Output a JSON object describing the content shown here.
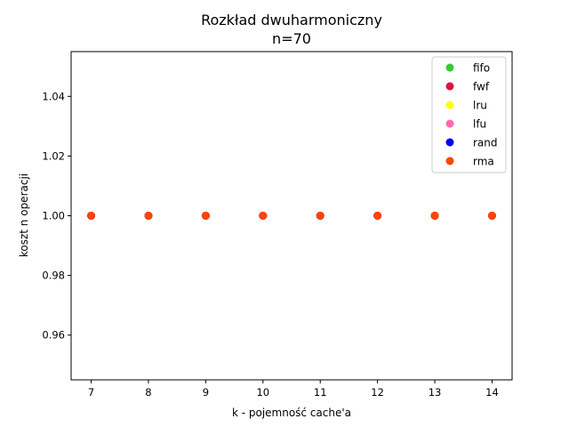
{
  "chart_data": {
    "type": "scatter",
    "title": "Rozkład dwuharmoniczny",
    "subtitle": "n=70",
    "xlabel": "k - pojemność cache'a",
    "ylabel": "koszt n operacji",
    "xlim": [
      6.65,
      14.35
    ],
    "ylim": [
      0.945,
      1.055
    ],
    "xticks": [
      7,
      8,
      9,
      10,
      11,
      12,
      13,
      14
    ],
    "xtick_labels": [
      "7",
      "8",
      "9",
      "10",
      "11",
      "12",
      "13",
      "14"
    ],
    "yticks": [
      0.96,
      0.98,
      1.0,
      1.02,
      1.04
    ],
    "ytick_labels": [
      "0.96",
      "0.98",
      "1.00",
      "1.02",
      "1.04"
    ],
    "grid": false,
    "legend_position": "top-right",
    "series": [
      {
        "name": "fifo",
        "color": "#33cc33",
        "x": [
          7,
          8,
          9,
          10,
          11,
          12,
          13,
          14
        ],
        "y": [
          1,
          1,
          1,
          1,
          1,
          1,
          1,
          1
        ]
      },
      {
        "name": "fwf",
        "color": "#dc143c",
        "x": [
          7,
          8,
          9,
          10,
          11,
          12,
          13,
          14
        ],
        "y": [
          1,
          1,
          1,
          1,
          1,
          1,
          1,
          1
        ]
      },
      {
        "name": "lru",
        "color": "#ffff00",
        "x": [
          7,
          8,
          9,
          10,
          11,
          12,
          13,
          14
        ],
        "y": [
          1,
          1,
          1,
          1,
          1,
          1,
          1,
          1
        ]
      },
      {
        "name": "lfu",
        "color": "#ff69b4",
        "x": [
          7,
          8,
          9,
          10,
          11,
          12,
          13,
          14
        ],
        "y": [
          1,
          1,
          1,
          1,
          1,
          1,
          1,
          1
        ]
      },
      {
        "name": "rand",
        "color": "#0000ff",
        "x": [
          7,
          8,
          9,
          10,
          11,
          12,
          13,
          14
        ],
        "y": [
          1,
          1,
          1,
          1,
          1,
          1,
          1,
          1
        ]
      },
      {
        "name": "rma",
        "color": "#ff4500",
        "x": [
          7,
          8,
          9,
          10,
          11,
          12,
          13,
          14
        ],
        "y": [
          1,
          1,
          1,
          1,
          1,
          1,
          1,
          1
        ]
      }
    ]
  }
}
